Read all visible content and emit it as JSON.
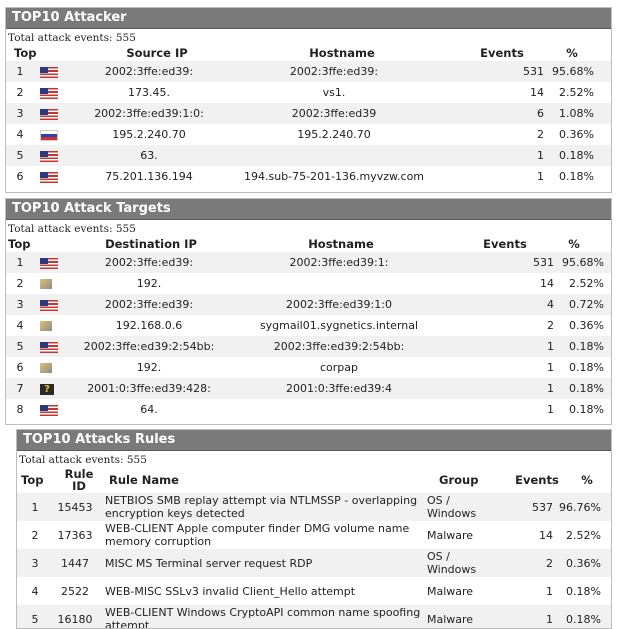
{
  "attacker": {
    "title": "TOP10 Attacker",
    "total": "Total attack events: 555",
    "headers": {
      "top": "Top",
      "ip": "Source IP",
      "host": "Hostname",
      "events": "Events",
      "pct": "%"
    },
    "rows": [
      {
        "top": "1",
        "flag": "us",
        "ip": "2002:3ffe:ed39:",
        "host": "2002:3ffe:ed39:",
        "events": "531",
        "pct": "95.68%"
      },
      {
        "top": "2",
        "flag": "us",
        "ip": "173.45.",
        "host": "vs1.",
        "events": "14",
        "pct": "2.52%"
      },
      {
        "top": "3",
        "flag": "us",
        "ip": "2002:3ffe:ed39:1:0:",
        "host": "2002:3ffe:ed39",
        "events": "6",
        "pct": "1.08%"
      },
      {
        "top": "4",
        "flag": "ru",
        "ip": "195.2.240.70",
        "host": "195.2.240.70",
        "events": "2",
        "pct": "0.36%"
      },
      {
        "top": "5",
        "flag": "us",
        "ip": "63.",
        "host": "",
        "events": "1",
        "pct": "0.18%"
      },
      {
        "top": "6",
        "flag": "us",
        "ip": "75.201.136.194",
        "host": "194.sub-75-201-136.myvzw.com",
        "events": "1",
        "pct": "0.18%"
      }
    ]
  },
  "targets": {
    "title": "TOP10 Attack Targets",
    "total": "Total attack events: 555",
    "headers": {
      "top": "Top",
      "ip": "Destination IP",
      "host": "Hostname",
      "events": "Events",
      "pct": "%"
    },
    "rows": [
      {
        "top": "1",
        "flag": "us",
        "ip": "2002:3ffe:ed39:",
        "host": "2002:3ffe:ed39:1:",
        "events": "531",
        "pct": "95.68%"
      },
      {
        "top": "2",
        "flag": "lan",
        "ip": "192.",
        "host": "",
        "events": "14",
        "pct": "2.52%"
      },
      {
        "top": "3",
        "flag": "us",
        "ip": "2002:3ffe:ed39:",
        "host": "2002:3ffe:ed39:1:0",
        "events": "4",
        "pct": "0.72%"
      },
      {
        "top": "4",
        "flag": "lan",
        "ip": "192.168.0.6",
        "host": "sygmail01.sygnetics.internal",
        "events": "2",
        "pct": "0.36%"
      },
      {
        "top": "5",
        "flag": "us",
        "ip": "2002:3ffe:ed39:2:54bb:",
        "host": "2002:3ffe:ed39:2:54bb:",
        "events": "1",
        "pct": "0.18%"
      },
      {
        "top": "6",
        "flag": "lan",
        "ip": "192.",
        "host": "corpap",
        "events": "1",
        "pct": "0.18%"
      },
      {
        "top": "7",
        "flag": "unk",
        "ip": "2001:0:3ffe:ed39:428:",
        "host": "2001:0:3ffe:ed39:4",
        "events": "1",
        "pct": "0.18%"
      },
      {
        "top": "8",
        "flag": "us",
        "ip": "64.",
        "host": "",
        "events": "1",
        "pct": "0.18%"
      }
    ]
  },
  "rules": {
    "title": "TOP10 Attacks Rules",
    "total": "Total attack events: 555",
    "headers": {
      "top": "Top",
      "rule_id": "Rule ID",
      "rule_name": "Rule Name",
      "group": "Group",
      "events": "Events",
      "pct": "%"
    },
    "rows": [
      {
        "top": "1",
        "id": "15453",
        "name": "NETBIOS SMB replay attempt via NTLMSSP - overlapping encryption keys detected",
        "group": "OS / Windows",
        "events": "537",
        "pct": "96.76%"
      },
      {
        "top": "2",
        "id": "17363",
        "name": "WEB-CLIENT Apple computer finder DMG volume name memory corruption",
        "group": "Malware",
        "events": "14",
        "pct": "2.52%"
      },
      {
        "top": "3",
        "id": "1447",
        "name": "MISC MS Terminal server request RDP",
        "group": "OS / Windows",
        "events": "2",
        "pct": "0.36%"
      },
      {
        "top": "4",
        "id": "2522",
        "name": "WEB-MISC SSLv3 invalid Client_Hello attempt",
        "group": "Malware",
        "events": "1",
        "pct": "0.18%"
      },
      {
        "top": "5",
        "id": "16180",
        "name": "WEB-CLIENT Windows CryptoAPI common name spoofing attempt",
        "group": "Malware",
        "events": "1",
        "pct": "0.18%"
      }
    ]
  }
}
